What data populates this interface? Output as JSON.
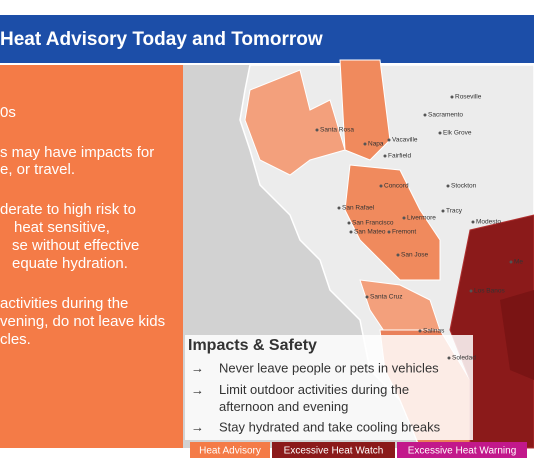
{
  "header": {
    "title": "Heat Advisory Today and Tomorrow"
  },
  "panel": {
    "lines": [
      "0s",
      "s may have impacts for",
      "e, or travel.",
      "derate to high risk to",
      "heat sensitive,",
      "se without effective",
      "equate hydration.",
      "activities during the",
      "vening, do not leave kids",
      "cles."
    ]
  },
  "map": {
    "labels": [
      "Roseville",
      "Sacramento",
      "Elk Grove",
      "Santa Rosa",
      "Vacaville",
      "Napa",
      "Fairfield",
      "Concord",
      "Stockton",
      "San Rafael",
      "San Francisco",
      "Livermore",
      "Tracy",
      "San Mateo",
      "Fremont",
      "Modesto",
      "San Jose",
      "Santa Cruz",
      "Los Banos",
      "Me",
      "Salinas",
      "Soledad"
    ]
  },
  "impacts": {
    "title": "Impacts & Safety",
    "items": [
      "Never leave people or pets in vehicles",
      "Limit outdoor activities during the afternoon and evening",
      "Stay hydrated and take cooling breaks"
    ]
  },
  "legend": {
    "items": [
      "Heat Advisory",
      "Excessive Heat Watch",
      "Excessive Heat Warning"
    ]
  }
}
